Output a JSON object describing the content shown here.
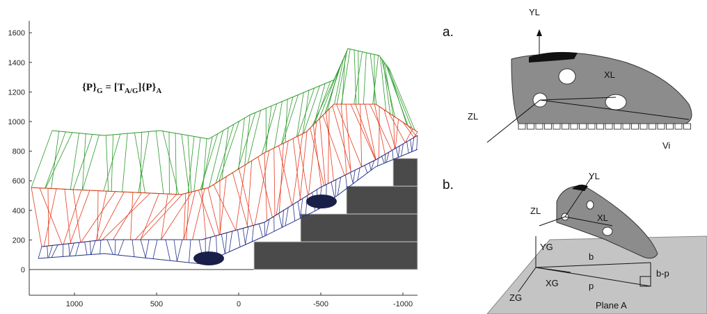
{
  "left_panel": {
    "formula": {
      "lhs": "{P}",
      "lhs_sub": "G",
      "mid": "= [T",
      "mid_sub": "A/G",
      "rhs": "]{P}",
      "rhs_sub": "A"
    },
    "yticks": [
      0,
      200,
      400,
      600,
      800,
      1000,
      1200,
      1400,
      1600
    ],
    "xticks": [
      1000,
      500,
      0,
      -500,
      -1000
    ]
  },
  "right_panel": {
    "panel_a": {
      "letter": "a.",
      "labels": [
        "YL",
        "XL",
        "ZL",
        "Vi"
      ]
    },
    "panel_b": {
      "letter": "b.",
      "labels": [
        "YL",
        "ZL",
        "XL",
        "YG",
        "b",
        "b-p",
        "XG",
        "p",
        "ZG",
        "Plane A"
      ]
    }
  }
}
